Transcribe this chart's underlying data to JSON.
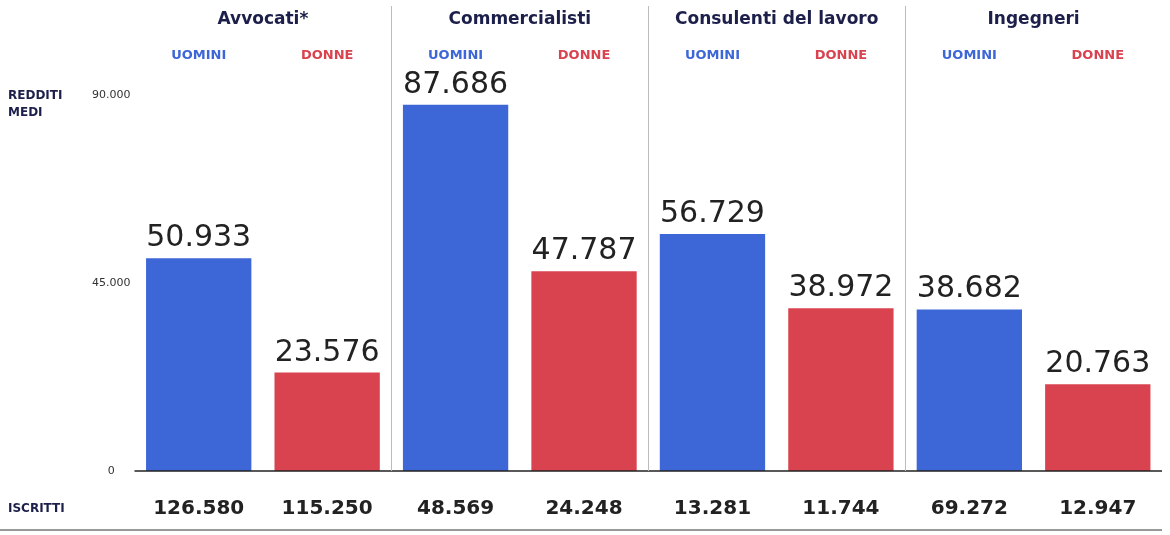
{
  "chart_data": {
    "type": "bar",
    "categories": [
      "Avvocati*",
      "Commercialisti",
      "Consulenti del lavoro",
      "Ingegneri"
    ],
    "ylabel": "REDDITI MEDI",
    "series": [
      {
        "name": "UOMINI",
        "color": "#3d66d6",
        "values": [
          50933,
          87686,
          56729,
          38682
        ],
        "value_labels": [
          "50.933",
          "87.686",
          "56.729",
          "38.682"
        ]
      },
      {
        "name": "DONNE",
        "color": "#d8434f",
        "values": [
          23576,
          47787,
          38972,
          20763
        ],
        "value_labels": [
          "23.576",
          "47.787",
          "38.972",
          "20.763"
        ]
      }
    ],
    "ylim": [
      0,
      90000
    ],
    "yticks": [
      0,
      {
        "value": 45000,
        "label": "45.000"
      },
      {
        "value": 90000,
        "label": "90.000"
      }
    ],
    "grid": false,
    "legend": false,
    "annotations": [
      "ISCRITTI",
      "126.580",
      "115.250",
      "48.569",
      "24.248",
      "13.281",
      "11.744",
      "69.272",
      "12.947"
    ]
  }
}
